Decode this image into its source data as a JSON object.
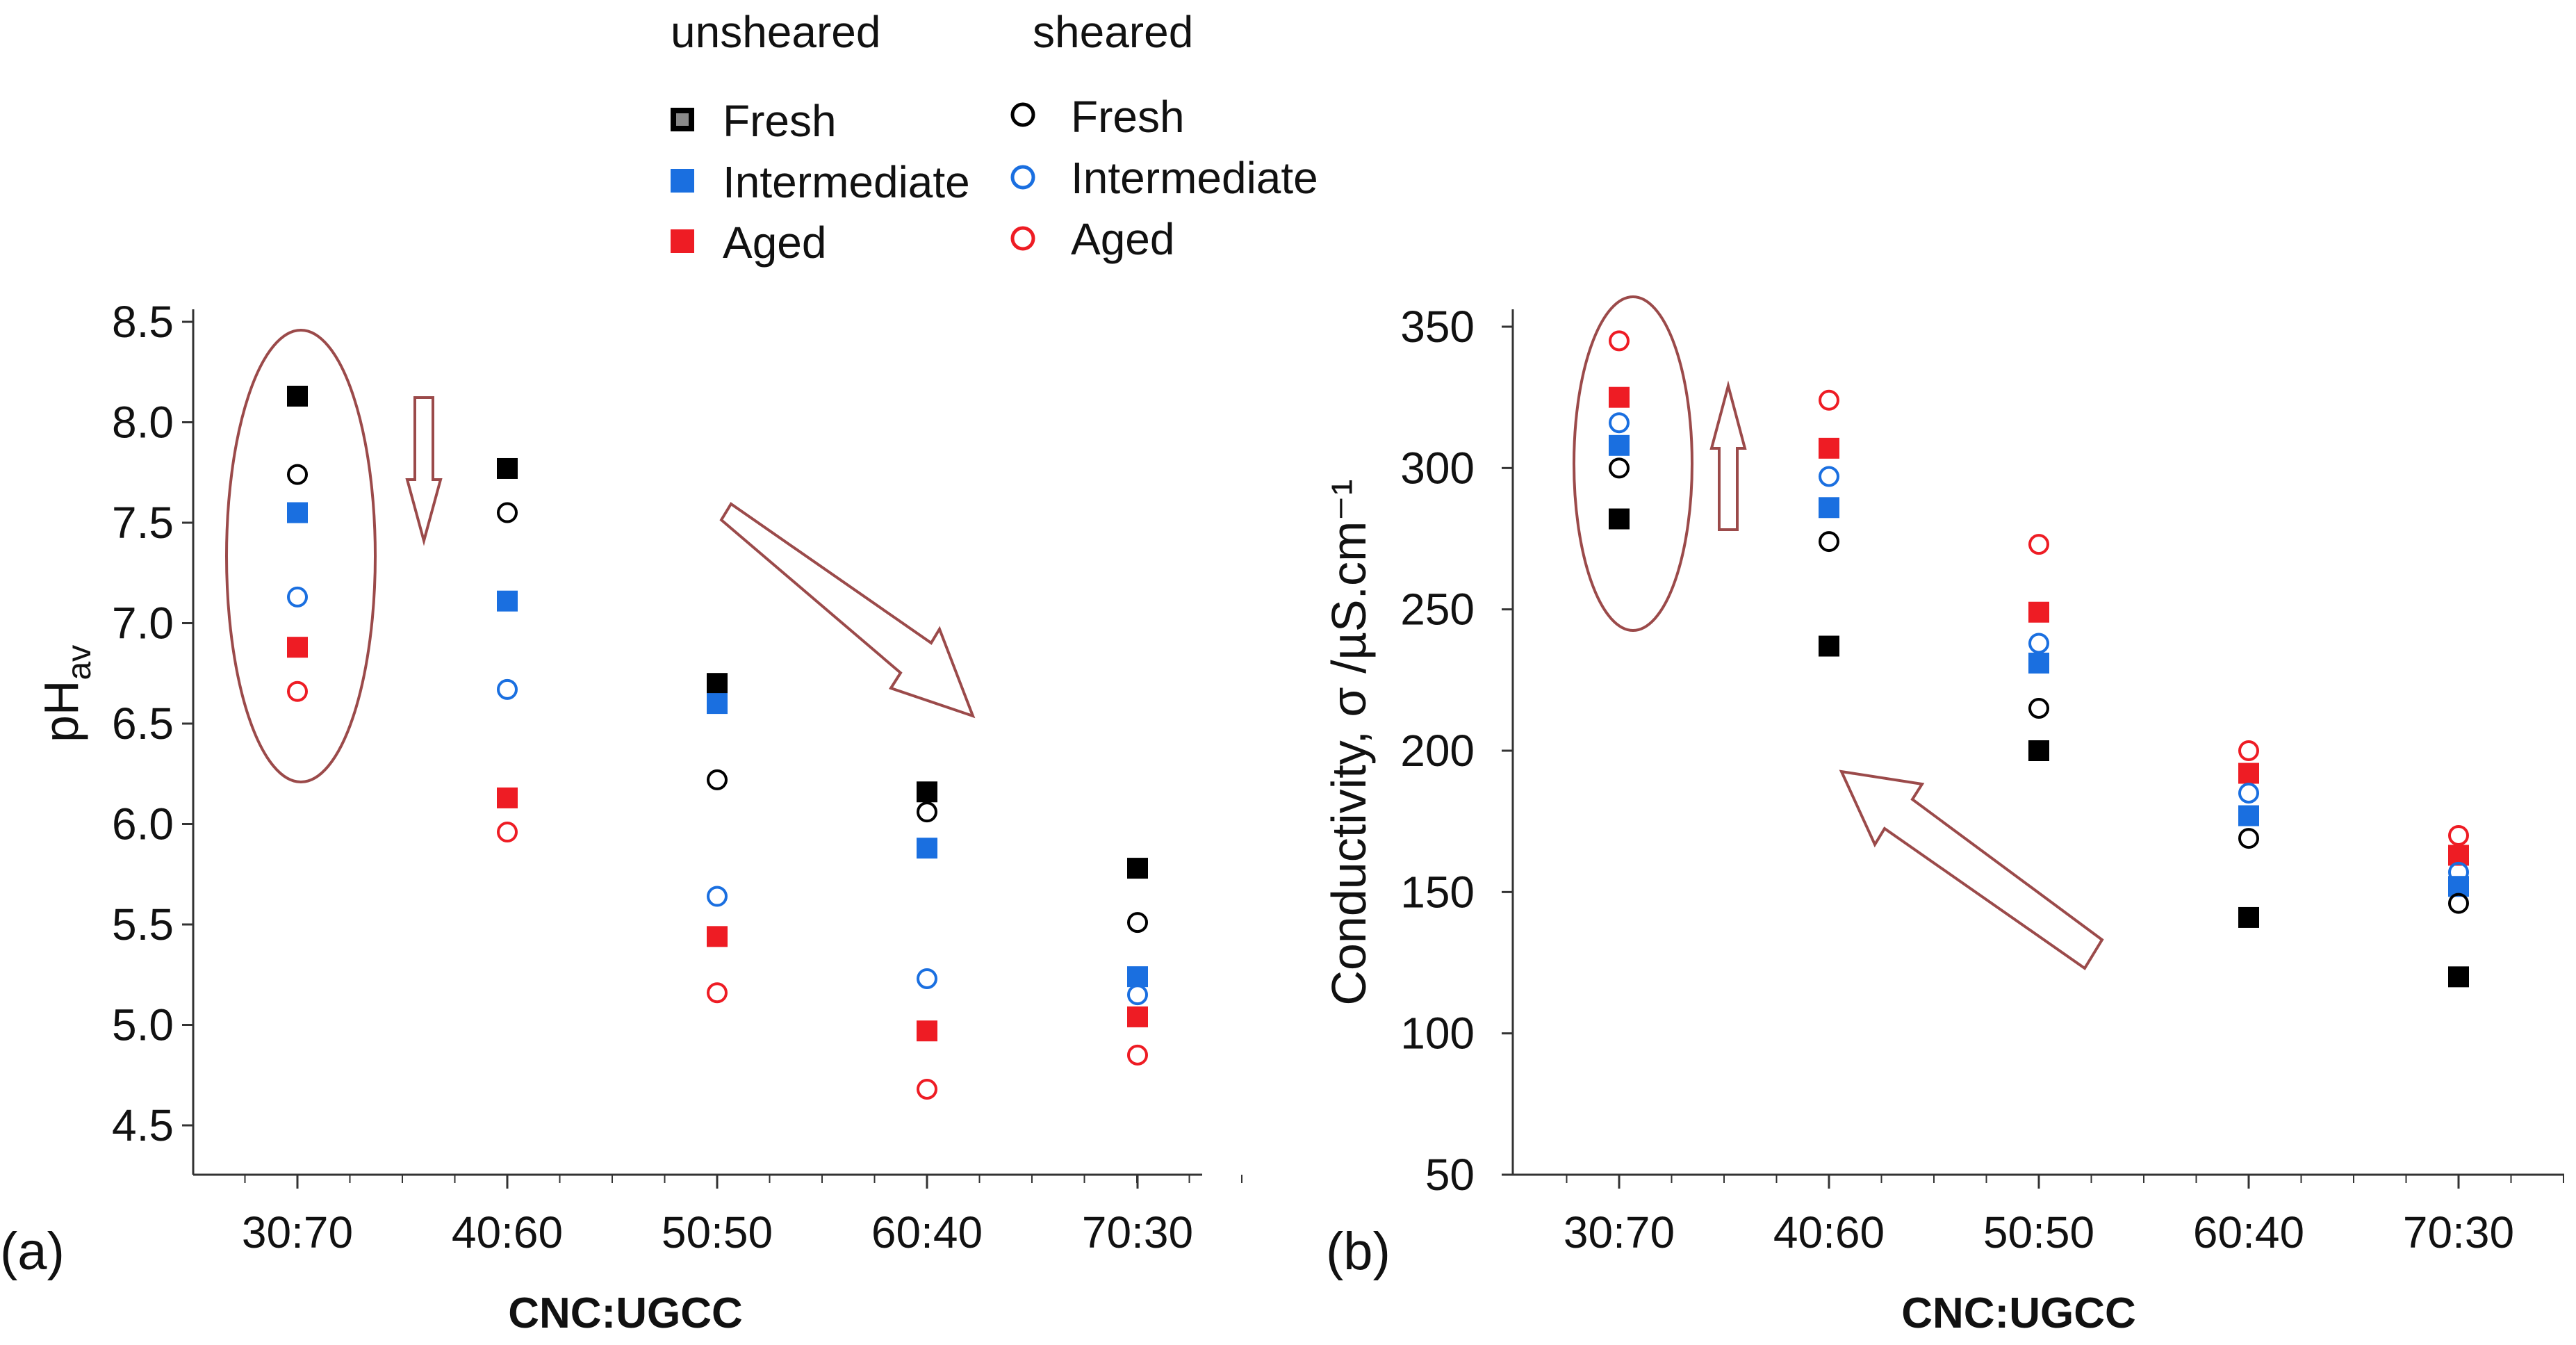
{
  "legend": {
    "unsheared_title": "unsheared",
    "sheared_title": "sheared",
    "unsheared_items": [
      {
        "label": "Fresh",
        "color": "#000000",
        "marker": "square"
      },
      {
        "label": "Intermediate",
        "color": "#1a6fe0",
        "marker": "square"
      },
      {
        "label": "Aged",
        "color": "#ee1c24",
        "marker": "square"
      }
    ],
    "sheared_items": [
      {
        "label": "Fresh",
        "color": "#000000",
        "marker": "circle"
      },
      {
        "label": "Intermediate",
        "color": "#1a6fe0",
        "marker": "circle"
      },
      {
        "label": "Aged",
        "color": "#ee1c24",
        "marker": "circle"
      }
    ]
  },
  "chart_data": [
    {
      "type": "scatter",
      "panel_label": "(a)",
      "title": "",
      "xlabel": "CNC:UGCC",
      "ylabel_main": "pH",
      "ylabel_sub": "av",
      "categories": [
        "30:70",
        "40:60",
        "50:50",
        "60:40",
        "70:30"
      ],
      "ylim": [
        4.25,
        8.5
      ],
      "yticks": [
        4.5,
        5.0,
        5.5,
        6.0,
        6.5,
        7.0,
        7.5,
        8.0,
        8.5
      ],
      "ytick_labels": [
        "4.5",
        "5.0",
        "5.5",
        "6.0",
        "6.5",
        "7.0",
        "7.5",
        "8.0",
        "8.5"
      ],
      "series": [
        {
          "name": "unsheared Fresh",
          "marker": "square",
          "color": "#000000",
          "values": [
            8.13,
            7.77,
            6.7,
            6.16,
            5.78
          ]
        },
        {
          "name": "unsheared Intermediate",
          "marker": "square",
          "color": "#1a6fe0",
          "values": [
            7.55,
            7.11,
            6.6,
            5.88,
            5.24
          ]
        },
        {
          "name": "unsheared Aged",
          "marker": "square",
          "color": "#ee1c24",
          "values": [
            6.88,
            6.13,
            5.44,
            4.97,
            5.04
          ]
        },
        {
          "name": "sheared Fresh",
          "marker": "circle",
          "color": "#000000",
          "values": [
            7.74,
            7.55,
            6.22,
            6.06,
            5.51
          ]
        },
        {
          "name": "sheared Intermediate",
          "marker": "circle",
          "color": "#1a6fe0",
          "values": [
            7.13,
            6.67,
            5.64,
            5.23,
            5.15
          ]
        },
        {
          "name": "sheared Aged",
          "marker": "circle",
          "color": "#ee1c24",
          "values": [
            6.66,
            5.96,
            5.16,
            4.68,
            4.85
          ]
        }
      ],
      "annotations": [
        "ellipse around 30:70 data",
        "down arrow",
        "diagonal down-right arrow"
      ]
    },
    {
      "type": "scatter",
      "panel_label": "(b)",
      "title": "",
      "xlabel": "CNC:UGCC",
      "ylabel": "Conductivity, σ /µS.cm⁻¹",
      "categories": [
        "30:70",
        "40:60",
        "50:50",
        "60:40",
        "70:30"
      ],
      "ylim": [
        50,
        350
      ],
      "yticks": [
        50,
        100,
        150,
        200,
        250,
        300,
        350
      ],
      "ytick_labels": [
        "50",
        "100",
        "150",
        "200",
        "250",
        "300",
        "350"
      ],
      "series": [
        {
          "name": "unsheared Fresh",
          "marker": "square",
          "color": "#000000",
          "values": [
            282,
            237,
            200,
            141,
            120
          ]
        },
        {
          "name": "unsheared Intermediate",
          "marker": "square",
          "color": "#1a6fe0",
          "values": [
            308,
            286,
            231,
            177,
            152
          ]
        },
        {
          "name": "unsheared Aged",
          "marker": "square",
          "color": "#ee1c24",
          "values": [
            325,
            307,
            249,
            192,
            163
          ]
        },
        {
          "name": "sheared Fresh",
          "marker": "circle",
          "color": "#000000",
          "values": [
            300,
            274,
            215,
            169,
            146
          ]
        },
        {
          "name": "sheared Intermediate",
          "marker": "circle",
          "color": "#1a6fe0",
          "values": [
            316,
            297,
            238,
            185,
            157
          ]
        },
        {
          "name": "sheared Aged",
          "marker": "circle",
          "color": "#ee1c24",
          "values": [
            345,
            324,
            273,
            200,
            170
          ]
        }
      ],
      "annotations": [
        "ellipse around 30:70 data",
        "up arrow",
        "diagonal up-left arrow"
      ]
    }
  ],
  "colors": {
    "annotation": "#9b4a4a",
    "axis": "#333333"
  }
}
